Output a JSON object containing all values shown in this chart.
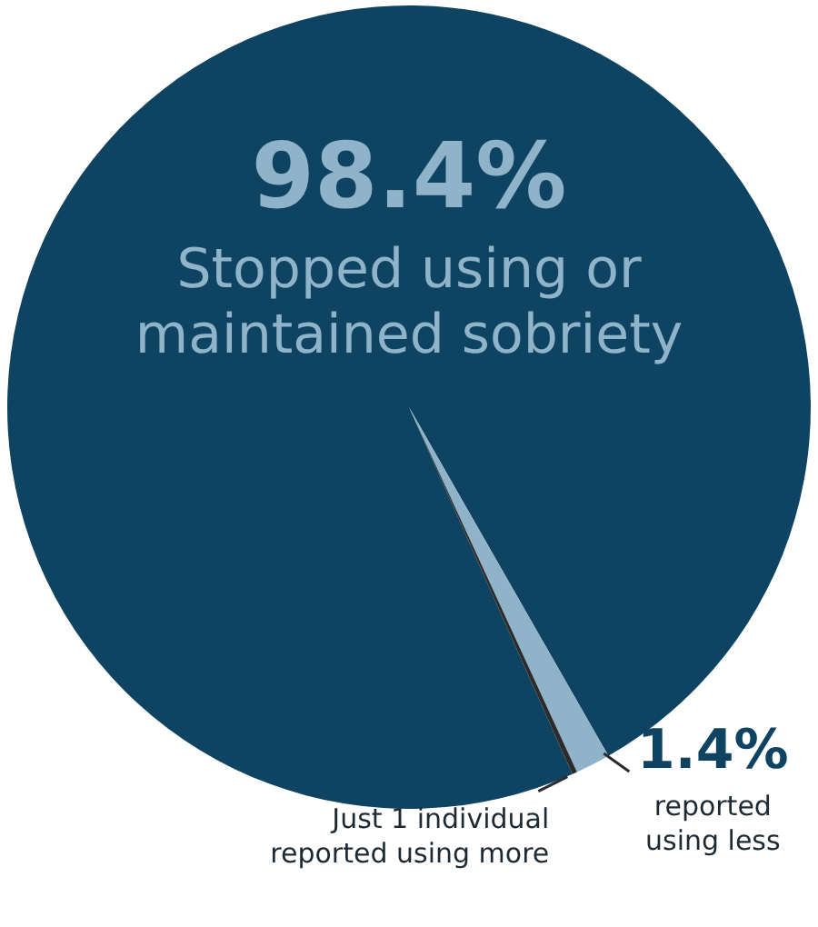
{
  "chart_data": {
    "type": "pie",
    "categories": [
      "Stopped using or maintained sobriety",
      "reported using less",
      "Just 1 individual reported using more"
    ],
    "values": [
      98.4,
      1.4,
      0.2
    ],
    "colors": [
      "#0e4462",
      "#8fb4c9",
      "#2b2b2b"
    ],
    "value_labels": [
      "98.4%",
      "1.4%",
      null
    ]
  }
}
